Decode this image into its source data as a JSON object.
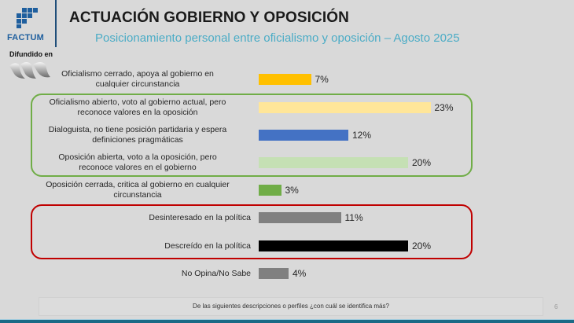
{
  "brand": {
    "logo_text": "FACTUM",
    "difundido_label": "Difundido en",
    "brand_color": "#1f5f9e"
  },
  "header": {
    "title": "ACTUACIÓN GOBIERNO Y OPOSICIÓN",
    "subtitle": "Posicionamiento personal entre oficialismo y oposición – Agosto 2025"
  },
  "footer": {
    "question": "De las siguientes descripciones o perfiles ¿con cuál se identifica más?",
    "page_number": "6"
  },
  "chart_data": {
    "type": "bar",
    "orientation": "horizontal",
    "title": "Posicionamiento personal entre oficialismo y oposición – Agosto 2025",
    "xlabel": "",
    "ylabel": "",
    "grid": false,
    "unit": "%",
    "categories": [
      "Oficialismo cerrado, apoya al gobierno en cualquier circunstancia",
      "Oficialismo abierto, voto al gobierno actual, pero reconoce valores en la oposición",
      "Dialoguista, no tiene posición partidaria y espera definiciones pragmáticas",
      "Oposición abierta, voto a la oposición, pero reconoce valores en el gobierno",
      "Oposición cerrada, critica al gobierno en cualquier circunstancia",
      "Desinteresado en la política",
      "Descreído en la política",
      "No Opina/No Sabe"
    ],
    "label_lines": [
      [
        "Oficialismo cerrado, apoya al gobierno en",
        "cualquier circunstancia"
      ],
      [
        "Oficialismo abierto, voto al gobierno actual, pero",
        "reconoce valores en la oposición"
      ],
      [
        "Dialoguista, no tiene posición partidaria y espera",
        "definiciones pragmáticas"
      ],
      [
        "Oposición abierta, voto a la oposición, pero",
        "reconoce valores en el gobierno"
      ],
      [
        "Oposición cerrada, critica al gobierno en cualquier",
        "circunstancia"
      ],
      [
        "Desinteresado en la política"
      ],
      [
        "Descreído en la política"
      ],
      [
        "No Opina/No Sabe"
      ]
    ],
    "values": [
      7,
      23,
      12,
      20,
      3,
      11,
      20,
      4
    ],
    "value_labels": [
      "7%",
      "23%",
      "12%",
      "20%",
      "3%",
      "11%",
      "20%",
      "4%"
    ],
    "colors": [
      "#ffc000",
      "#ffe699",
      "#4472c4",
      "#c5e0b4",
      "#70ad47",
      "#808080",
      "#000000",
      "#808080"
    ],
    "groups": [
      {
        "name": "green-group",
        "members": [
          1,
          2,
          3
        ],
        "color": "#70ad47"
      },
      {
        "name": "red-group",
        "members": [
          5,
          6
        ],
        "color": "#c00000"
      }
    ],
    "xlim": [
      0,
      25
    ]
  }
}
